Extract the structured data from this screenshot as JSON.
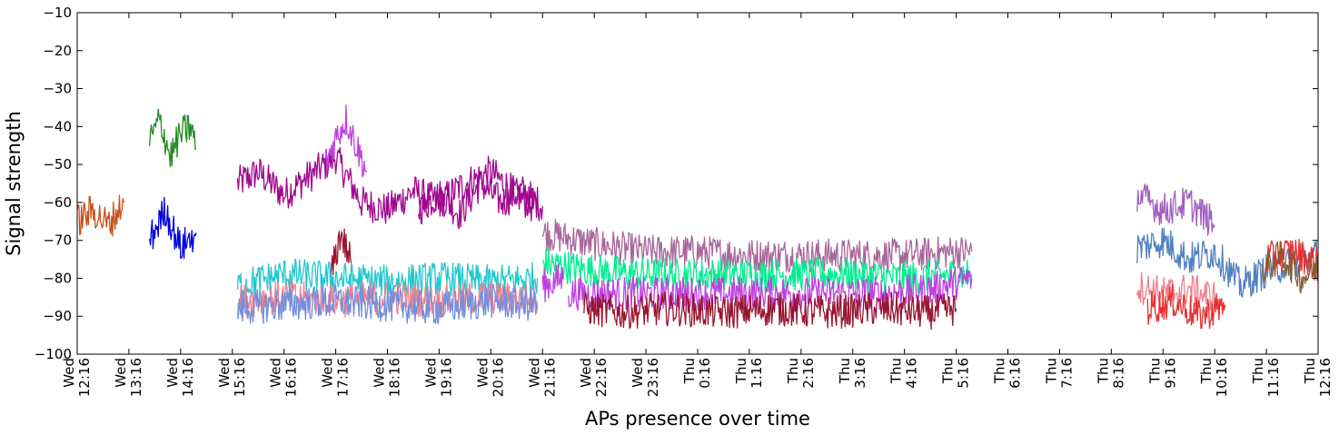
{
  "chart_data": {
    "type": "line",
    "title": "",
    "xlabel": "APs presence over time",
    "ylabel": "Signal strength",
    "ylim": [
      -100,
      -10
    ],
    "yticks": [
      -100,
      -90,
      -80,
      -70,
      -60,
      -50,
      -40,
      -30,
      -20,
      -10
    ],
    "xlim": [
      0,
      24
    ],
    "grid": false,
    "legend": "none",
    "x_ticks": [
      {
        "day": "Wed",
        "time": "12:16"
      },
      {
        "day": "Wed",
        "time": "13:16"
      },
      {
        "day": "Wed",
        "time": "14:16"
      },
      {
        "day": "Wed",
        "time": "15:16"
      },
      {
        "day": "Wed",
        "time": "16:16"
      },
      {
        "day": "Wed",
        "time": "17:16"
      },
      {
        "day": "Wed",
        "time": "18:16"
      },
      {
        "day": "Wed",
        "time": "19:16"
      },
      {
        "day": "Wed",
        "time": "20:16"
      },
      {
        "day": "Wed",
        "time": "21:16"
      },
      {
        "day": "Wed",
        "time": "22:16"
      },
      {
        "day": "Wed",
        "time": "23:16"
      },
      {
        "day": "Thu",
        "time": "0:16"
      },
      {
        "day": "Thu",
        "time": "1:16"
      },
      {
        "day": "Thu",
        "time": "2:16"
      },
      {
        "day": "Thu",
        "time": "3:16"
      },
      {
        "day": "Thu",
        "time": "4:16"
      },
      {
        "day": "Thu",
        "time": "5:16"
      },
      {
        "day": "Thu",
        "time": "6:16"
      },
      {
        "day": "Thu",
        "time": "7:16"
      },
      {
        "day": "Thu",
        "time": "8:16"
      },
      {
        "day": "Thu",
        "time": "9:16"
      },
      {
        "day": "Thu",
        "time": "10:16"
      },
      {
        "day": "Thu",
        "time": "11:16"
      },
      {
        "day": "Thu",
        "time": "12:16"
      }
    ],
    "series": [
      {
        "color": "#a0088e",
        "segments": [
          {
            "x": [
              3.1,
              3.5,
              4.0,
              4.5,
              5.0,
              5.5,
              6.0,
              6.5,
              7.0,
              7.5,
              8.0,
              8.5,
              8.9
            ],
            "y": [
              -55,
              -52,
              -58,
              -53,
              -48,
              -60,
              -62,
              -57,
              -60,
              -55,
              -52,
              -58,
              -62
            ]
          },
          {
            "x": [
              6.6,
              7.0,
              7.4,
              7.8,
              8.2,
              8.6,
              9.0
            ],
            "y": [
              -62,
              -58,
              -63,
              -55,
              -60,
              -57,
              -61
            ]
          }
        ]
      },
      {
        "color": "#a9679b",
        "segments": [
          {
            "x": [
              9.0,
              10.0,
              11.0,
              12.0,
              13.0,
              14.0,
              15.0,
              16.0,
              17.0,
              17.3
            ],
            "y": [
              -68,
              -71,
              -73,
              -73,
              -74,
              -74,
              -74,
              -74,
              -73,
              -73
            ]
          }
        ]
      },
      {
        "color": "#00ee90",
        "segments": [
          {
            "x": [
              9.0,
              10.0,
              11.0,
              12.0,
              13.0,
              14.0,
              15.0,
              16.0,
              17.0,
              17.3
            ],
            "y": [
              -76,
              -78,
              -79,
              -79,
              -79,
              -79,
              -79,
              -80,
              -79,
              -79
            ]
          }
        ]
      },
      {
        "color": "#c040e0",
        "segments": [
          {
            "x": [
              9.0,
              9.4
            ],
            "y": [
              -82,
              -80
            ]
          },
          {
            "x": [
              9.5,
              10.5,
              11.5,
              12.5,
              13.5,
              14.5,
              15.5,
              16.5,
              17.3
            ],
            "y": [
              -84,
              -84,
              -84,
              -84,
              -84,
              -84,
              -84,
              -83,
              -80
            ]
          },
          {
            "x": [
              4.8,
              5.0,
              5.2,
              5.4,
              5.6
            ],
            "y": [
              -50,
              -43,
              -38,
              -45,
              -52
            ]
          }
        ]
      },
      {
        "color": "#981530",
        "segments": [
          {
            "x": [
              9.8,
              10.5,
              11.5,
              12.5,
              13.5,
              14.5,
              15.5,
              16.5,
              17.0
            ],
            "y": [
              -88,
              -89,
              -88,
              -89,
              -88,
              -89,
              -88,
              -89,
              -88
            ]
          },
          {
            "x": [
              4.9,
              5.1,
              5.3
            ],
            "y": [
              -80,
              -68,
              -76
            ]
          }
        ]
      },
      {
        "color": "#20c8d0",
        "segments": [
          {
            "x": [
              3.1,
              4.0,
              5.0,
              6.0,
              7.0,
              8.0,
              8.9
            ],
            "y": [
              -82,
              -79,
              -80,
              -81,
              -80,
              -81,
              -80
            ]
          }
        ]
      },
      {
        "color": "#f08090",
        "segments": [
          {
            "x": [
              3.1,
              4.0,
              5.0,
              6.0,
              7.0,
              8.0,
              8.9
            ],
            "y": [
              -86,
              -85,
              -86,
              -85,
              -86,
              -85,
              -86
            ]
          },
          {
            "x": [
              20.5,
              21.0,
              21.5,
              22.0
            ],
            "y": [
              -82,
              -84,
              -83,
              -85
            ]
          }
        ]
      },
      {
        "color": "#7090e0",
        "segments": [
          {
            "x": [
              3.1,
              4.0,
              5.0,
              6.0,
              7.0,
              8.0,
              8.9
            ],
            "y": [
              -88,
              -87,
              -86,
              -87,
              -88,
              -86,
              -87
            ]
          }
        ]
      },
      {
        "color": "#228b22",
        "segments": [
          {
            "x": [
              1.4,
              1.6,
              1.8,
              2.0,
              2.2,
              2.3
            ],
            "y": [
              -44,
              -38,
              -48,
              -42,
              -40,
              -46
            ]
          }
        ]
      },
      {
        "color": "#0000dd",
        "segments": [
          {
            "x": [
              1.4,
              1.7,
              2.0,
              2.3
            ],
            "y": [
              -70,
              -62,
              -72,
              -68
            ]
          }
        ]
      },
      {
        "color": "#c8501a",
        "segments": [
          {
            "x": [
              0.0,
              0.3,
              0.6,
              0.9
            ],
            "y": [
              -65,
              -62,
              -66,
              -60
            ]
          }
        ]
      },
      {
        "color": "#5080c0",
        "segments": [
          {
            "x": [
              20.5,
              21.0,
              21.5,
              22.0,
              22.5,
              23.0,
              23.5,
              24.0
            ],
            "y": [
              -72,
              -70,
              -75,
              -73,
              -82,
              -78,
              -76,
              -74
            ]
          }
        ]
      },
      {
        "color": "#a060c0",
        "segments": [
          {
            "x": [
              20.5,
              21.0,
              21.5,
              22.0
            ],
            "y": [
              -58,
              -62,
              -60,
              -66
            ]
          }
        ]
      },
      {
        "color": "#e83030",
        "segments": [
          {
            "x": [
              20.7,
              21.2,
              21.7,
              22.2
            ],
            "y": [
              -88,
              -86,
              -90,
              -87
            ]
          },
          {
            "x": [
              23.0,
              23.5,
              24.0
            ],
            "y": [
              -75,
              -73,
              -76
            ]
          }
        ]
      },
      {
        "color": "#8a5a2a",
        "segments": [
          {
            "x": [
              22.9,
              23.3,
              23.7,
              24.0
            ],
            "y": [
              -78,
              -74,
              -80,
              -77
            ]
          }
        ]
      }
    ]
  }
}
